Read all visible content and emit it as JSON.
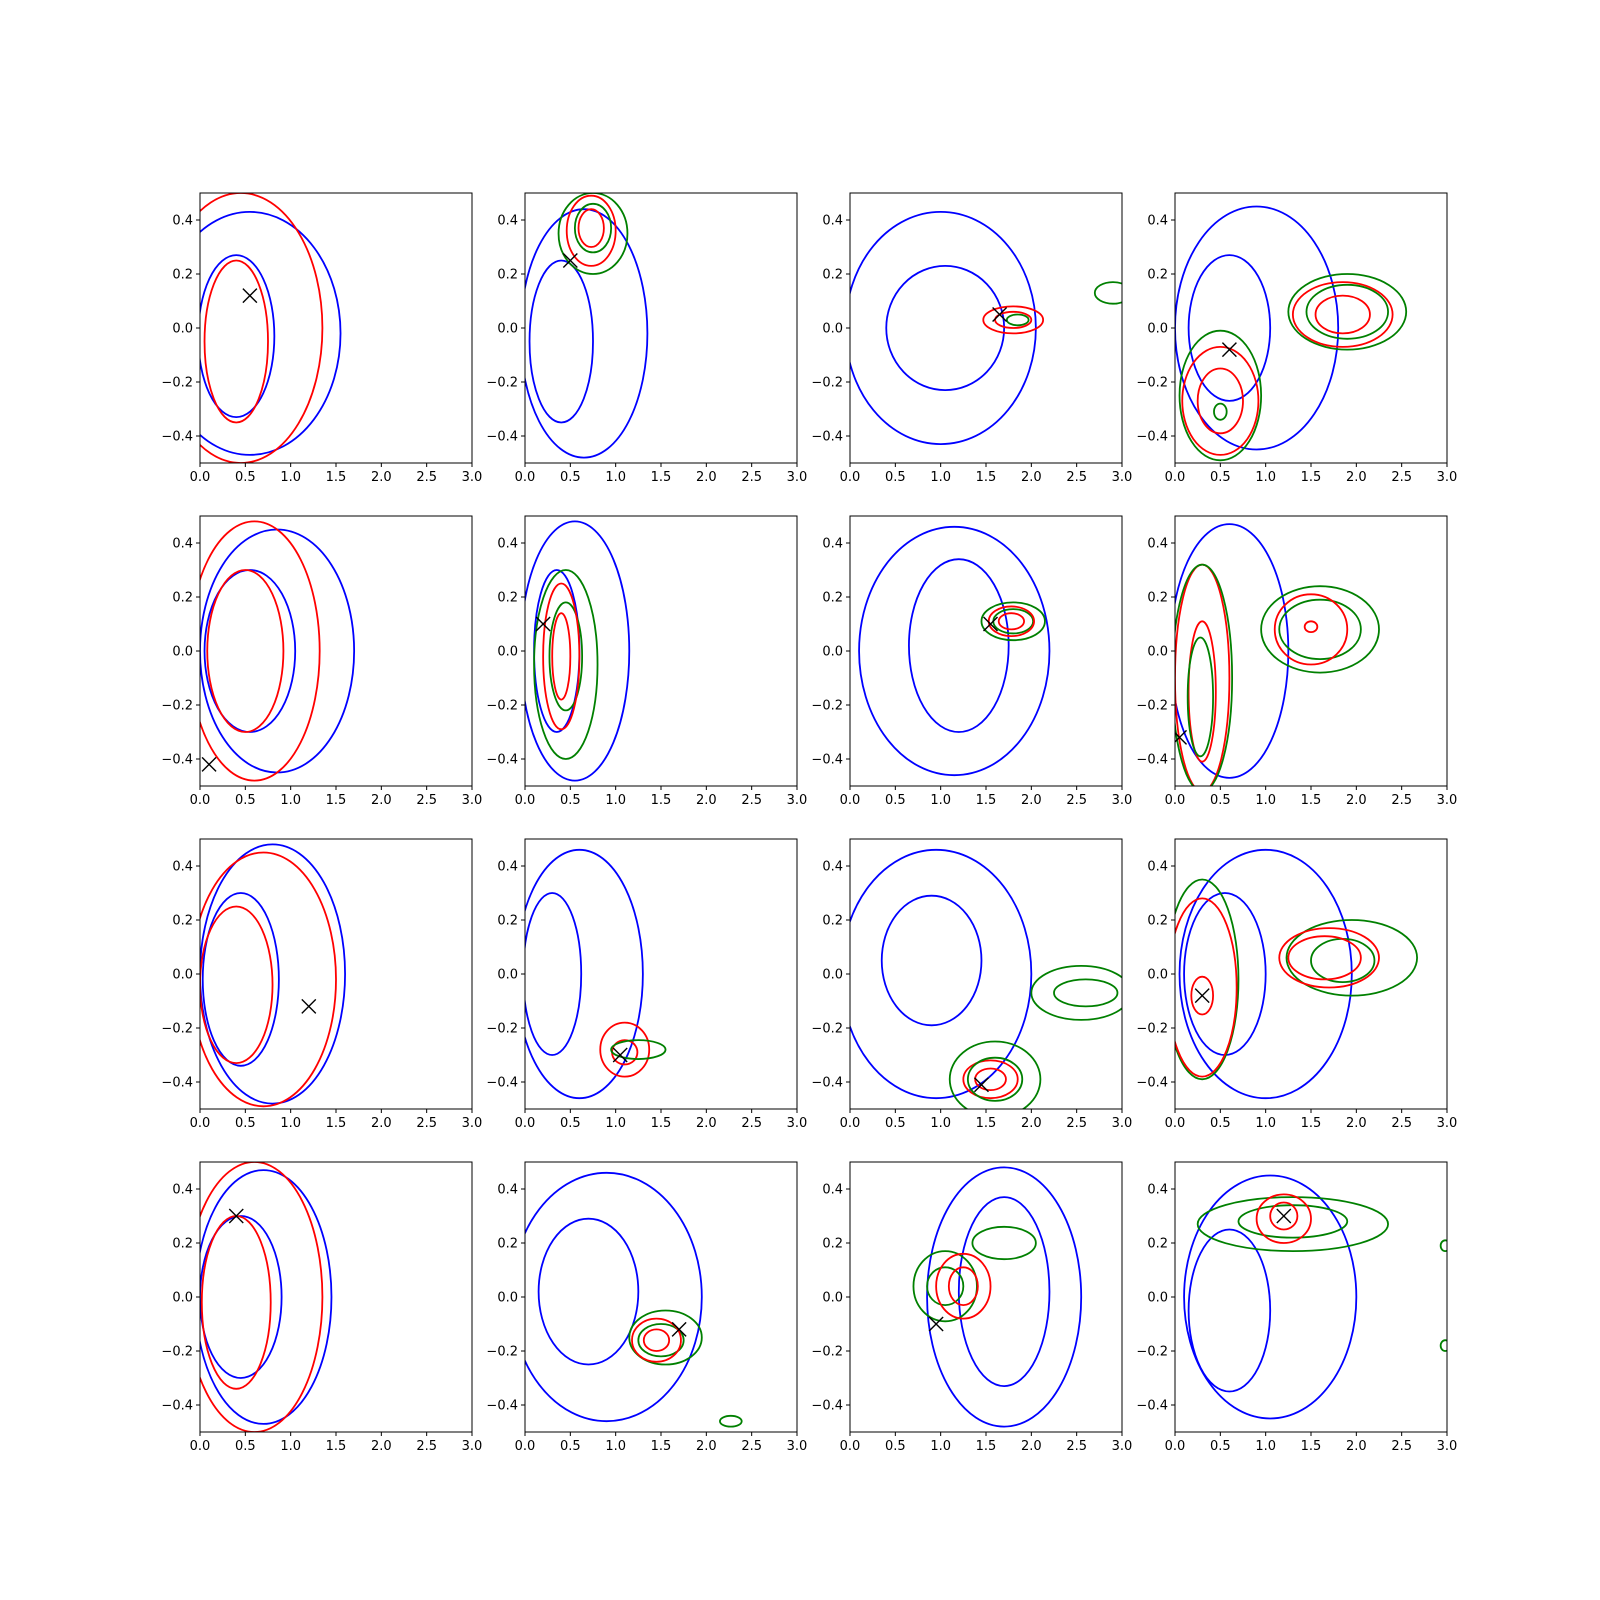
{
  "colors": {
    "blue": "#0000ff",
    "red": "#ff0000",
    "green": "#008000",
    "marker": "#000000"
  },
  "chart_data": {
    "type": "contour",
    "grid": "4x4",
    "x_range": [
      0,
      3.0
    ],
    "y_range": [
      -0.5,
      0.5
    ],
    "x_ticks": [
      "0.0",
      "0.5",
      "1.0",
      "1.5",
      "2.0",
      "2.5",
      "3.0"
    ],
    "y_ticks": [
      "−0.4",
      "−0.2",
      "0.0",
      "0.2",
      "0.4"
    ],
    "grid_lines": false,
    "legend": "none",
    "panels": [
      {
        "marker": [
          0.55,
          0.12
        ],
        "contours": [
          {
            "color": "blue",
            "cx": 0.55,
            "cy": -0.02,
            "rx": 1.0,
            "ry": 0.45
          },
          {
            "color": "blue",
            "cx": 0.4,
            "cy": -0.03,
            "rx": 0.42,
            "ry": 0.3
          },
          {
            "color": "red",
            "cx": 0.45,
            "cy": 0.0,
            "rx": 0.9,
            "ry": 0.5
          },
          {
            "color": "red",
            "cx": 0.4,
            "cy": -0.05,
            "rx": 0.35,
            "ry": 0.3
          }
        ]
      },
      {
        "marker": [
          0.5,
          0.25
        ],
        "contours": [
          {
            "color": "blue",
            "cx": 0.65,
            "cy": -0.02,
            "rx": 0.7,
            "ry": 0.46
          },
          {
            "color": "blue",
            "cx": 0.4,
            "cy": -0.05,
            "rx": 0.35,
            "ry": 0.3
          },
          {
            "color": "green",
            "cx": 0.75,
            "cy": 0.35,
            "rx": 0.38,
            "ry": 0.15
          },
          {
            "color": "green",
            "cx": 0.75,
            "cy": 0.37,
            "rx": 0.2,
            "ry": 0.09
          },
          {
            "color": "red",
            "cx": 0.73,
            "cy": 0.36,
            "rx": 0.27,
            "ry": 0.13
          },
          {
            "color": "red",
            "cx": 0.73,
            "cy": 0.37,
            "rx": 0.14,
            "ry": 0.07
          }
        ]
      },
      {
        "marker": [
          1.65,
          0.05
        ],
        "contours": [
          {
            "color": "blue",
            "cx": 1.0,
            "cy": 0.0,
            "rx": 1.05,
            "ry": 0.43
          },
          {
            "color": "blue",
            "cx": 1.05,
            "cy": 0.0,
            "rx": 0.65,
            "ry": 0.23
          },
          {
            "color": "red",
            "cx": 1.8,
            "cy": 0.03,
            "rx": 0.33,
            "ry": 0.05
          },
          {
            "color": "red",
            "cx": 1.8,
            "cy": 0.03,
            "rx": 0.2,
            "ry": 0.03
          },
          {
            "color": "green",
            "cx": 1.85,
            "cy": 0.03,
            "rx": 0.12,
            "ry": 0.02
          },
          {
            "color": "green",
            "cx": 2.9,
            "cy": 0.13,
            "rx": 0.2,
            "ry": 0.04
          }
        ]
      },
      {
        "marker": [
          0.6,
          -0.08
        ],
        "contours": [
          {
            "color": "blue",
            "cx": 0.9,
            "cy": 0.0,
            "rx": 0.9,
            "ry": 0.45
          },
          {
            "color": "blue",
            "cx": 0.6,
            "cy": 0.0,
            "rx": 0.45,
            "ry": 0.27
          },
          {
            "color": "green",
            "cx": 1.9,
            "cy": 0.06,
            "rx": 0.65,
            "ry": 0.14
          },
          {
            "color": "green",
            "cx": 1.9,
            "cy": 0.06,
            "rx": 0.45,
            "ry": 0.1
          },
          {
            "color": "red",
            "cx": 1.85,
            "cy": 0.05,
            "rx": 0.55,
            "ry": 0.12
          },
          {
            "color": "red",
            "cx": 1.85,
            "cy": 0.05,
            "rx": 0.3,
            "ry": 0.07
          },
          {
            "color": "green",
            "cx": 0.5,
            "cy": -0.25,
            "rx": 0.45,
            "ry": 0.24
          },
          {
            "color": "red",
            "cx": 0.5,
            "cy": -0.27,
            "rx": 0.42,
            "ry": 0.2
          },
          {
            "color": "red",
            "cx": 0.5,
            "cy": -0.27,
            "rx": 0.25,
            "ry": 0.12
          },
          {
            "color": "green",
            "cx": 0.5,
            "cy": -0.31,
            "rx": 0.07,
            "ry": 0.03
          }
        ]
      },
      {
        "marker": [
          0.1,
          -0.42
        ],
        "contours": [
          {
            "color": "blue",
            "cx": 0.85,
            "cy": 0.0,
            "rx": 0.85,
            "ry": 0.45
          },
          {
            "color": "blue",
            "cx": 0.55,
            "cy": 0.0,
            "rx": 0.5,
            "ry": 0.3
          },
          {
            "color": "red",
            "cx": 0.6,
            "cy": 0.0,
            "rx": 0.72,
            "ry": 0.48
          },
          {
            "color": "red",
            "cx": 0.5,
            "cy": 0.0,
            "rx": 0.42,
            "ry": 0.3
          }
        ]
      },
      {
        "marker": [
          0.2,
          0.1
        ],
        "contours": [
          {
            "color": "blue",
            "cx": 0.55,
            "cy": 0.0,
            "rx": 0.6,
            "ry": 0.48
          },
          {
            "color": "blue",
            "cx": 0.35,
            "cy": 0.0,
            "rx": 0.25,
            "ry": 0.3
          },
          {
            "color": "green",
            "cx": 0.45,
            "cy": -0.05,
            "rx": 0.35,
            "ry": 0.35
          },
          {
            "color": "green",
            "cx": 0.45,
            "cy": -0.02,
            "rx": 0.18,
            "ry": 0.2
          },
          {
            "color": "red",
            "cx": 0.4,
            "cy": -0.02,
            "rx": 0.2,
            "ry": 0.27
          },
          {
            "color": "red",
            "cx": 0.4,
            "cy": -0.02,
            "rx": 0.1,
            "ry": 0.16
          }
        ]
      },
      {
        "marker": [
          1.55,
          0.1
        ],
        "contours": [
          {
            "color": "blue",
            "cx": 1.15,
            "cy": 0.0,
            "rx": 1.05,
            "ry": 0.46
          },
          {
            "color": "blue",
            "cx": 1.2,
            "cy": 0.02,
            "rx": 0.55,
            "ry": 0.32
          },
          {
            "color": "green",
            "cx": 1.8,
            "cy": 0.11,
            "rx": 0.35,
            "ry": 0.07
          },
          {
            "color": "green",
            "cx": 1.8,
            "cy": 0.11,
            "rx": 0.22,
            "ry": 0.045
          },
          {
            "color": "red",
            "cx": 1.78,
            "cy": 0.11,
            "rx": 0.25,
            "ry": 0.055
          },
          {
            "color": "red",
            "cx": 1.78,
            "cy": 0.11,
            "rx": 0.14,
            "ry": 0.03
          }
        ]
      },
      {
        "marker": [
          0.05,
          -0.32
        ],
        "contours": [
          {
            "color": "blue",
            "cx": 0.6,
            "cy": 0.0,
            "rx": 0.65,
            "ry": 0.47
          },
          {
            "color": "red",
            "cx": 0.3,
            "cy": -0.1,
            "rx": 0.3,
            "ry": 0.42
          },
          {
            "color": "red",
            "cx": 0.3,
            "cy": -0.15,
            "rx": 0.15,
            "ry": 0.26
          },
          {
            "color": "green",
            "cx": 0.3,
            "cy": -0.1,
            "rx": 0.33,
            "ry": 0.42
          },
          {
            "color": "green",
            "cx": 0.28,
            "cy": -0.17,
            "rx": 0.14,
            "ry": 0.22
          },
          {
            "color": "green",
            "cx": 1.6,
            "cy": 0.08,
            "rx": 0.65,
            "ry": 0.16
          },
          {
            "color": "green",
            "cx": 1.6,
            "cy": 0.08,
            "rx": 0.45,
            "ry": 0.11
          },
          {
            "color": "red",
            "cx": 1.5,
            "cy": 0.08,
            "rx": 0.4,
            "ry": 0.13
          },
          {
            "color": "red",
            "cx": 1.5,
            "cy": 0.09,
            "rx": 0.07,
            "ry": 0.02
          }
        ]
      },
      {
        "marker": [
          1.2,
          -0.12
        ],
        "contours": [
          {
            "color": "blue",
            "cx": 0.8,
            "cy": 0.0,
            "rx": 0.8,
            "ry": 0.48
          },
          {
            "color": "blue",
            "cx": 0.45,
            "cy": -0.02,
            "rx": 0.42,
            "ry": 0.32
          },
          {
            "color": "red",
            "cx": 0.7,
            "cy": -0.02,
            "rx": 0.8,
            "ry": 0.47
          },
          {
            "color": "red",
            "cx": 0.4,
            "cy": -0.04,
            "rx": 0.4,
            "ry": 0.29
          }
        ]
      },
      {
        "marker": [
          1.05,
          -0.3
        ],
        "contours": [
          {
            "color": "blue",
            "cx": 0.6,
            "cy": 0.0,
            "rx": 0.7,
            "ry": 0.46
          },
          {
            "color": "blue",
            "cx": 0.3,
            "cy": 0.0,
            "rx": 0.32,
            "ry": 0.3
          },
          {
            "color": "red",
            "cx": 1.1,
            "cy": -0.28,
            "rx": 0.27,
            "ry": 0.1
          },
          {
            "color": "red",
            "cx": 1.1,
            "cy": -0.29,
            "rx": 0.14,
            "ry": 0.045
          },
          {
            "color": "green",
            "cx": 1.25,
            "cy": -0.28,
            "rx": 0.3,
            "ry": 0.035
          }
        ]
      },
      {
        "marker": [
          1.45,
          -0.41
        ],
        "contours": [
          {
            "color": "blue",
            "cx": 0.95,
            "cy": 0.0,
            "rx": 1.05,
            "ry": 0.46
          },
          {
            "color": "blue",
            "cx": 0.9,
            "cy": 0.05,
            "rx": 0.55,
            "ry": 0.24
          },
          {
            "color": "red",
            "cx": 1.55,
            "cy": -0.39,
            "rx": 0.3,
            "ry": 0.07
          },
          {
            "color": "red",
            "cx": 1.55,
            "cy": -0.39,
            "rx": 0.17,
            "ry": 0.04
          },
          {
            "color": "green",
            "cx": 1.6,
            "cy": -0.39,
            "rx": 0.5,
            "ry": 0.14
          },
          {
            "color": "green",
            "cx": 1.6,
            "cy": -0.39,
            "rx": 0.3,
            "ry": 0.08
          },
          {
            "color": "green",
            "cx": 2.55,
            "cy": -0.07,
            "rx": 0.55,
            "ry": 0.1
          },
          {
            "color": "green",
            "cx": 2.6,
            "cy": -0.07,
            "rx": 0.35,
            "ry": 0.05
          }
        ]
      },
      {
        "marker": [
          0.3,
          -0.08
        ],
        "contours": [
          {
            "color": "blue",
            "cx": 1.0,
            "cy": 0.0,
            "rx": 0.95,
            "ry": 0.46
          },
          {
            "color": "blue",
            "cx": 0.55,
            "cy": 0.0,
            "rx": 0.45,
            "ry": 0.3
          },
          {
            "color": "green",
            "cx": 0.3,
            "cy": -0.02,
            "rx": 0.4,
            "ry": 0.37
          },
          {
            "color": "red",
            "cx": 0.3,
            "cy": -0.05,
            "rx": 0.38,
            "ry": 0.33
          },
          {
            "color": "red",
            "cx": 0.3,
            "cy": -0.08,
            "rx": 0.12,
            "ry": 0.07
          },
          {
            "color": "green",
            "cx": 1.95,
            "cy": 0.06,
            "rx": 0.72,
            "ry": 0.14
          },
          {
            "color": "green",
            "cx": 1.85,
            "cy": 0.05,
            "rx": 0.35,
            "ry": 0.08
          },
          {
            "color": "red",
            "cx": 1.7,
            "cy": 0.06,
            "rx": 0.55,
            "ry": 0.11
          },
          {
            "color": "red",
            "cx": 1.65,
            "cy": 0.06,
            "rx": 0.4,
            "ry": 0.08
          }
        ]
      },
      {
        "marker": [
          0.4,
          0.3
        ],
        "contours": [
          {
            "color": "blue",
            "cx": 0.7,
            "cy": 0.0,
            "rx": 0.75,
            "ry": 0.47
          },
          {
            "color": "blue",
            "cx": 0.45,
            "cy": 0.0,
            "rx": 0.45,
            "ry": 0.3
          },
          {
            "color": "red",
            "cx": 0.6,
            "cy": 0.0,
            "rx": 0.75,
            "ry": 0.5
          },
          {
            "color": "red",
            "cx": 0.4,
            "cy": -0.02,
            "rx": 0.38,
            "ry": 0.32
          }
        ]
      },
      {
        "marker": [
          1.7,
          -0.12
        ],
        "contours": [
          {
            "color": "blue",
            "cx": 0.9,
            "cy": 0.0,
            "rx": 1.05,
            "ry": 0.46
          },
          {
            "color": "blue",
            "cx": 0.7,
            "cy": 0.02,
            "rx": 0.55,
            "ry": 0.27
          },
          {
            "color": "green",
            "cx": 1.55,
            "cy": -0.15,
            "rx": 0.4,
            "ry": 0.1
          },
          {
            "color": "green",
            "cx": 1.5,
            "cy": -0.16,
            "rx": 0.25,
            "ry": 0.06
          },
          {
            "color": "red",
            "cx": 1.45,
            "cy": -0.16,
            "rx": 0.27,
            "ry": 0.08
          },
          {
            "color": "red",
            "cx": 1.45,
            "cy": -0.16,
            "rx": 0.14,
            "ry": 0.04
          },
          {
            "color": "green",
            "cx": 2.27,
            "cy": -0.46,
            "rx": 0.12,
            "ry": 0.02
          }
        ]
      },
      {
        "marker": [
          0.95,
          -0.1
        ],
        "contours": [
          {
            "color": "blue",
            "cx": 1.7,
            "cy": 0.0,
            "rx": 0.85,
            "ry": 0.48
          },
          {
            "color": "blue",
            "cx": 1.7,
            "cy": 0.02,
            "rx": 0.5,
            "ry": 0.35
          },
          {
            "color": "green",
            "cx": 1.05,
            "cy": 0.04,
            "rx": 0.35,
            "ry": 0.13
          },
          {
            "color": "green",
            "cx": 1.05,
            "cy": 0.04,
            "rx": 0.2,
            "ry": 0.07
          },
          {
            "color": "green",
            "cx": 1.7,
            "cy": 0.2,
            "rx": 0.35,
            "ry": 0.06
          },
          {
            "color": "red",
            "cx": 1.25,
            "cy": 0.04,
            "rx": 0.3,
            "ry": 0.12
          },
          {
            "color": "red",
            "cx": 1.25,
            "cy": 0.04,
            "rx": 0.16,
            "ry": 0.07
          }
        ]
      },
      {
        "marker": [
          1.2,
          0.3
        ],
        "contours": [
          {
            "color": "blue",
            "cx": 1.05,
            "cy": 0.0,
            "rx": 0.95,
            "ry": 0.45
          },
          {
            "color": "blue",
            "cx": 0.6,
            "cy": -0.05,
            "rx": 0.45,
            "ry": 0.3
          },
          {
            "color": "green",
            "cx": 1.3,
            "cy": 0.27,
            "rx": 1.05,
            "ry": 0.1
          },
          {
            "color": "green",
            "cx": 1.3,
            "cy": 0.28,
            "rx": 0.6,
            "ry": 0.06
          },
          {
            "color": "red",
            "cx": 1.2,
            "cy": 0.29,
            "rx": 0.3,
            "ry": 0.09
          },
          {
            "color": "red",
            "cx": 1.2,
            "cy": 0.3,
            "rx": 0.15,
            "ry": 0.05
          },
          {
            "color": "green",
            "cx": 2.98,
            "cy": 0.19,
            "rx": 0.05,
            "ry": 0.02
          },
          {
            "color": "green",
            "cx": 2.98,
            "cy": -0.18,
            "rx": 0.05,
            "ry": 0.02
          }
        ]
      }
    ]
  }
}
